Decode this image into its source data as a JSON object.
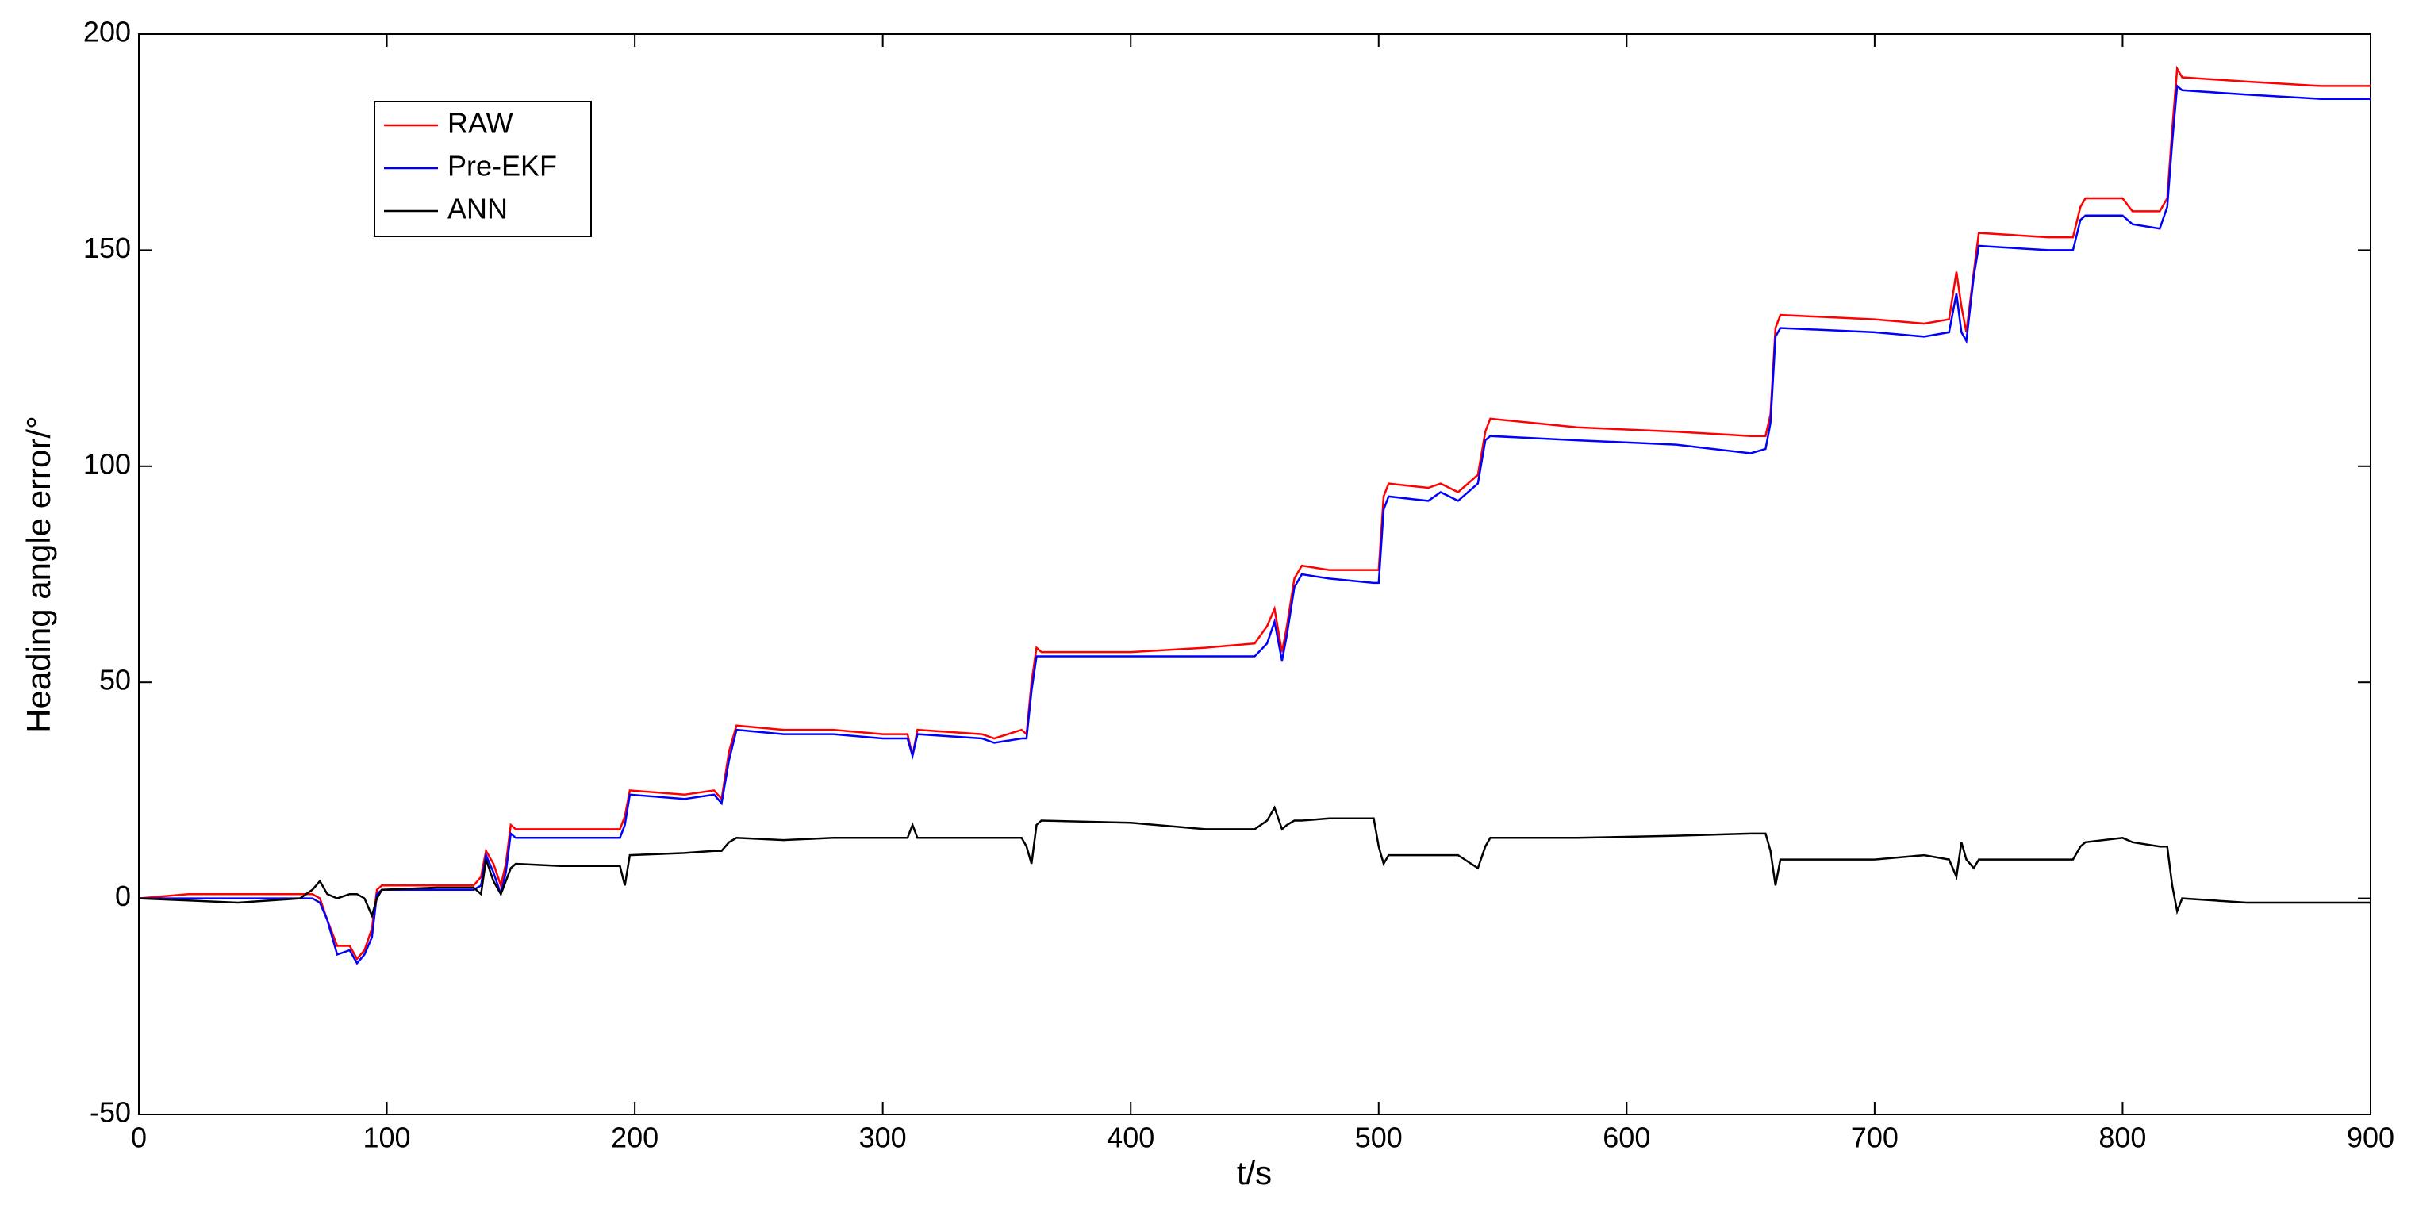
{
  "chart_data": {
    "type": "line",
    "xlabel": "t/s",
    "ylabel": "Heading angle error/°",
    "xlim": [
      0,
      900
    ],
    "ylim": [
      -50,
      200
    ],
    "xticks": [
      0,
      100,
      200,
      300,
      400,
      500,
      600,
      700,
      800,
      900
    ],
    "yticks": [
      -50,
      0,
      50,
      100,
      150,
      200
    ],
    "legend": "upper left",
    "grid": false,
    "x": [
      0,
      20,
      40,
      65,
      70,
      73,
      76,
      80,
      85,
      88,
      91,
      94,
      96,
      98,
      120,
      135,
      138,
      140,
      143,
      146,
      148,
      150,
      152,
      170,
      194,
      196,
      198,
      220,
      232,
      235,
      238,
      241,
      260,
      280,
      300,
      310,
      312,
      314,
      340,
      345,
      356,
      358,
      360,
      362,
      364,
      400,
      430,
      450,
      455,
      458,
      461,
      463,
      466,
      469,
      480,
      498,
      500,
      502,
      504,
      520,
      525,
      532,
      540,
      543,
      545,
      580,
      620,
      650,
      656,
      658,
      660,
      662,
      700,
      720,
      730,
      733,
      735,
      737,
      740,
      742,
      770,
      780,
      783,
      785,
      800,
      804,
      815,
      818,
      820,
      822,
      824,
      850,
      880,
      900
    ],
    "series": [
      {
        "name": "RAW",
        "color": "#ff0000",
        "values": [
          0,
          1,
          1,
          1,
          1,
          0,
          -5,
          -11,
          -11,
          -14,
          -12,
          -7,
          2,
          3,
          3,
          3,
          5,
          11,
          8,
          3,
          8,
          17,
          16,
          16,
          16,
          19,
          25,
          24,
          25,
          23,
          34,
          40,
          39,
          39,
          38,
          38,
          33,
          39,
          38,
          37,
          39,
          38,
          50,
          58,
          57,
          57,
          58,
          59,
          63,
          67,
          57,
          63,
          74,
          77,
          76,
          76,
          76,
          93,
          96,
          95,
          96,
          94,
          98,
          108,
          111,
          109,
          108,
          107,
          107,
          112,
          132,
          135,
          134,
          133,
          134,
          145,
          137,
          131,
          145,
          154,
          153,
          153,
          160,
          162,
          162,
          159,
          159,
          162,
          178,
          192,
          190,
          189,
          188,
          188
        ]
      },
      {
        "name": "Pre-EKF",
        "color": "#0000ff",
        "values": [
          0,
          0,
          0,
          0,
          0,
          -1,
          -5,
          -13,
          -12,
          -15,
          -13,
          -9,
          1,
          2,
          2,
          2,
          3,
          10,
          6,
          1,
          6,
          15,
          14,
          14,
          14,
          17,
          24,
          23,
          24,
          22,
          32,
          39,
          38,
          38,
          37,
          37,
          33,
          38,
          37,
          36,
          37,
          37,
          48,
          56,
          56,
          56,
          56,
          56,
          59,
          64,
          55,
          61,
          72,
          75,
          74,
          73,
          73,
          90,
          93,
          92,
          94,
          92,
          96,
          106,
          107,
          106,
          105,
          103,
          104,
          110,
          130,
          132,
          131,
          130,
          131,
          140,
          131,
          129,
          144,
          151,
          150,
          150,
          157,
          158,
          158,
          156,
          155,
          160,
          175,
          188,
          187,
          186,
          185,
          185
        ]
      },
      {
        "name": "ANN",
        "color": "#000000",
        "values": [
          0,
          -0.5,
          -1,
          0,
          2,
          4,
          1,
          0,
          1,
          1,
          0,
          -4,
          0,
          2,
          2.5,
          2.5,
          1,
          9,
          4,
          1,
          4,
          7,
          8,
          7.5,
          7.5,
          3,
          10,
          10.5,
          11,
          11,
          13,
          14,
          13.5,
          14,
          14,
          14,
          17,
          14,
          14,
          14,
          14,
          12,
          8,
          17,
          18,
          17.5,
          16,
          16,
          18,
          21,
          16,
          17,
          18,
          18,
          18.5,
          18.5,
          12,
          8,
          10,
          10,
          10,
          10,
          7,
          12,
          14,
          14,
          14.5,
          15,
          15,
          11,
          3,
          9,
          9,
          10,
          9,
          5,
          13,
          9,
          7,
          9,
          9,
          9,
          12,
          13,
          14,
          13,
          12,
          12,
          3,
          -3,
          0,
          -1,
          -1,
          -1
        ]
      }
    ]
  }
}
